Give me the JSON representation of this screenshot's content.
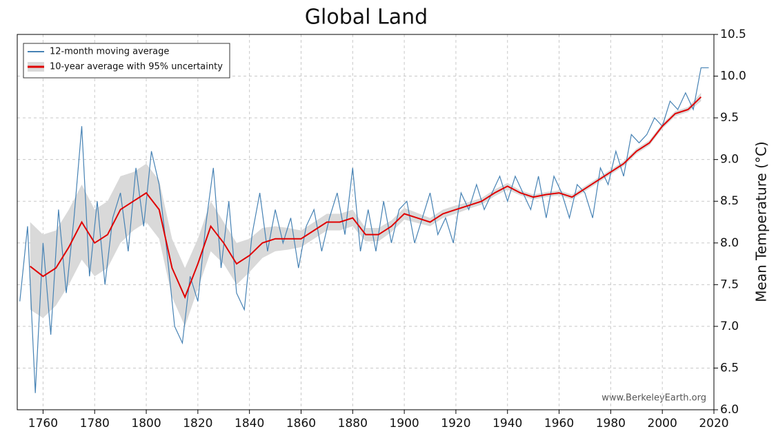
{
  "chart_data": {
    "type": "line",
    "title": "Global Land",
    "y_label": "Mean Temperature (°C)",
    "watermark": "www.BerkeleyEarth.org",
    "xlim": [
      1750,
      2020
    ],
    "ylim": [
      6.0,
      10.5
    ],
    "xticks": [
      1760,
      1780,
      1800,
      1820,
      1840,
      1860,
      1880,
      1900,
      1920,
      1940,
      1960,
      1980,
      2000,
      2020
    ],
    "yticks": [
      {
        "value": 6,
        "label": "6.0"
      },
      6.5,
      {
        "value": 7,
        "label": "7.0"
      },
      7.5,
      {
        "value": 8,
        "label": "8.0"
      },
      8.5,
      {
        "value": 9,
        "label": "9.0"
      },
      9.5,
      {
        "value": 10,
        "label": "10.0"
      },
      10.5
    ],
    "grid": true,
    "legend": "upper left",
    "series": [
      {
        "name": "12-month moving average",
        "color": "#4682b4",
        "x": [
          1751,
          1754,
          1757,
          1760,
          1763,
          1766,
          1769,
          1772,
          1775,
          1778,
          1781,
          1784,
          1787,
          1790,
          1793,
          1796,
          1799,
          1802,
          1805,
          1808,
          1811,
          1814,
          1817,
          1820,
          1823,
          1826,
          1829,
          1832,
          1835,
          1838,
          1841,
          1844,
          1847,
          1850,
          1853,
          1856,
          1859,
          1862,
          1865,
          1868,
          1871,
          1874,
          1877,
          1880,
          1883,
          1886,
          1889,
          1892,
          1895,
          1898,
          1901,
          1904,
          1907,
          1910,
          1913,
          1916,
          1919,
          1922,
          1925,
          1928,
          1931,
          1934,
          1937,
          1940,
          1943,
          1946,
          1949,
          1952,
          1955,
          1958,
          1961,
          1964,
          1967,
          1970,
          1973,
          1976,
          1979,
          1982,
          1985,
          1988,
          1991,
          1994,
          1997,
          2000,
          2003,
          2006,
          2009,
          2012,
          2015,
          2018
        ],
        "values": [
          7.3,
          8.2,
          6.2,
          8.0,
          6.9,
          8.4,
          7.4,
          8.3,
          9.4,
          7.6,
          8.5,
          7.5,
          8.3,
          8.6,
          7.9,
          8.9,
          8.2,
          9.1,
          8.7,
          7.9,
          7.0,
          6.8,
          7.6,
          7.3,
          8.2,
          8.9,
          7.7,
          8.5,
          7.4,
          7.2,
          8.1,
          8.6,
          7.9,
          8.4,
          8.0,
          8.3,
          7.7,
          8.2,
          8.4,
          7.9,
          8.3,
          8.6,
          8.1,
          8.9,
          7.9,
          8.4,
          7.9,
          8.5,
          8.0,
          8.4,
          8.5,
          8.0,
          8.3,
          8.6,
          8.1,
          8.3,
          8.0,
          8.6,
          8.4,
          8.7,
          8.4,
          8.6,
          8.8,
          8.5,
          8.8,
          8.6,
          8.4,
          8.8,
          8.3,
          8.8,
          8.6,
          8.3,
          8.7,
          8.6,
          8.3,
          8.9,
          8.7,
          9.1,
          8.8,
          9.3,
          9.2,
          9.3,
          9.5,
          9.4,
          9.7,
          9.6,
          9.8,
          9.6,
          10.1,
          10.1
        ]
      },
      {
        "name": "10-year average with 95% uncertainty",
        "color": "#e00000",
        "band_color": "#d9d9d9",
        "x": [
          1755,
          1760,
          1765,
          1770,
          1775,
          1780,
          1785,
          1790,
          1795,
          1800,
          1805,
          1810,
          1815,
          1820,
          1825,
          1830,
          1835,
          1840,
          1845,
          1850,
          1855,
          1860,
          1865,
          1870,
          1875,
          1880,
          1885,
          1890,
          1895,
          1900,
          1905,
          1910,
          1915,
          1920,
          1925,
          1930,
          1935,
          1940,
          1945,
          1950,
          1955,
          1960,
          1965,
          1970,
          1975,
          1980,
          1985,
          1990,
          1995,
          2000,
          2005,
          2010,
          2015
        ],
        "values": [
          7.72,
          7.6,
          7.7,
          7.95,
          8.25,
          8.0,
          8.1,
          8.4,
          8.5,
          8.6,
          8.4,
          7.7,
          7.35,
          7.75,
          8.2,
          8.0,
          7.75,
          7.85,
          8.0,
          8.05,
          8.05,
          8.05,
          8.15,
          8.25,
          8.25,
          8.3,
          8.1,
          8.1,
          8.2,
          8.35,
          8.3,
          8.25,
          8.35,
          8.4,
          8.45,
          8.5,
          8.6,
          8.68,
          8.6,
          8.55,
          8.58,
          8.6,
          8.55,
          8.65,
          8.75,
          8.85,
          8.95,
          9.1,
          9.2,
          9.4,
          9.55,
          9.6,
          9.75
        ],
        "lower": [
          7.2,
          7.1,
          7.25,
          7.5,
          7.8,
          7.6,
          7.7,
          8.0,
          8.15,
          8.25,
          8.05,
          7.35,
          7.0,
          7.45,
          7.9,
          7.75,
          7.5,
          7.65,
          7.82,
          7.9,
          7.92,
          7.95,
          8.05,
          8.15,
          8.15,
          8.2,
          8.02,
          8.02,
          8.13,
          8.28,
          8.24,
          8.2,
          8.3,
          8.35,
          8.41,
          8.46,
          8.56,
          8.64,
          8.57,
          8.52,
          8.55,
          8.57,
          8.52,
          8.62,
          8.72,
          8.82,
          8.92,
          9.07,
          9.17,
          9.37,
          9.52,
          9.57,
          9.7
        ],
        "upper": [
          8.25,
          8.1,
          8.15,
          8.4,
          8.7,
          8.4,
          8.5,
          8.8,
          8.85,
          8.95,
          8.75,
          8.05,
          7.7,
          8.05,
          8.5,
          8.25,
          8.0,
          8.05,
          8.18,
          8.2,
          8.18,
          8.15,
          8.25,
          8.35,
          8.35,
          8.4,
          8.18,
          8.18,
          8.27,
          8.42,
          8.36,
          8.3,
          8.4,
          8.45,
          8.49,
          8.54,
          8.64,
          8.72,
          8.63,
          8.58,
          8.61,
          8.63,
          8.58,
          8.68,
          8.78,
          8.88,
          8.98,
          9.13,
          9.23,
          9.43,
          9.58,
          9.63,
          9.8
        ]
      }
    ]
  }
}
